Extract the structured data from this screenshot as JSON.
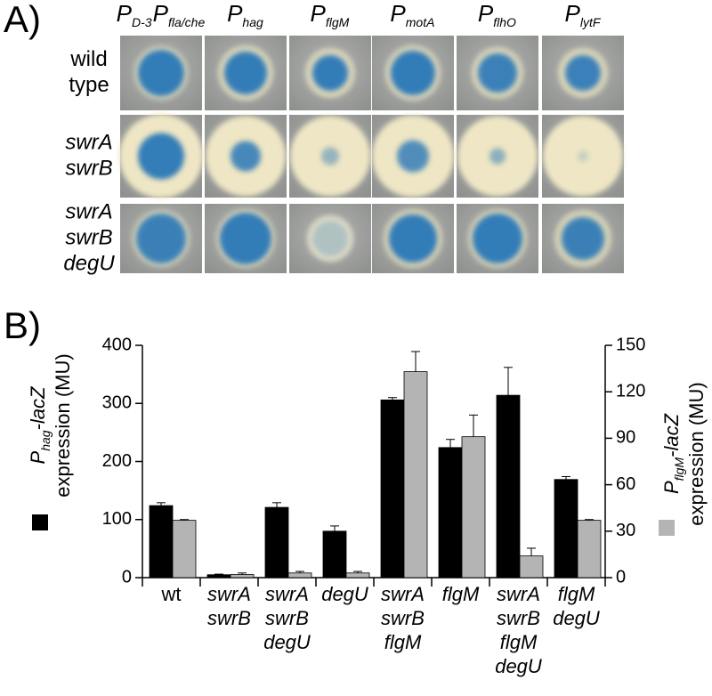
{
  "panel_a": {
    "label": "A)",
    "columns": [
      [
        [
          "P",
          "D-3"
        ],
        [
          "P",
          "fla/che"
        ]
      ],
      [
        [
          "P",
          "hag"
        ]
      ],
      [
        [
          "P",
          "flgM"
        ]
      ],
      [
        [
          "P",
          "motA"
        ]
      ],
      [
        [
          "P",
          "flhO"
        ]
      ],
      [
        [
          "P",
          "lytF"
        ]
      ]
    ],
    "rows": [
      [
        "wild",
        "type"
      ],
      [
        "swrA",
        "swrB"
      ],
      [
        "swrA",
        "swrB",
        "degU"
      ]
    ]
  },
  "chart_data": {
    "type": "bar",
    "label": "B)",
    "categories": [
      [
        "wt"
      ],
      [
        "swrA",
        "swrB"
      ],
      [
        "swrA",
        "swrB",
        "degU"
      ],
      [
        "degU"
      ],
      [
        "swrA",
        "swrB",
        "flgM"
      ],
      [
        "flgM"
      ],
      [
        "swrA",
        "swrB",
        "flgM",
        "degU"
      ],
      [
        "flgM",
        "degU"
      ]
    ],
    "ylabel": {
      "base": "P",
      "sub": "hag",
      "rest": "-lacZ",
      "line2": "expression (MU)"
    },
    "y2label": {
      "base": "P",
      "sub": "flgM",
      "rest": "-lacZ",
      "line2": "expression (MU)"
    },
    "ylim": [
      0,
      400
    ],
    "yticks": [
      0,
      100,
      200,
      300,
      400
    ],
    "y2lim": [
      0,
      150
    ],
    "y2ticks": [
      0,
      30,
      60,
      90,
      120,
      150
    ],
    "series": [
      {
        "color": "#000000",
        "values": [
          124,
          5,
          121,
          80,
          306,
          224,
          314,
          169
        ],
        "errors": [
          5,
          1,
          8,
          9,
          4,
          14,
          48,
          5
        ]
      },
      {
        "color": "#b4b4b4",
        "axis": "y2",
        "values": [
          37,
          2,
          3,
          3,
          133,
          91,
          14,
          37
        ],
        "errors": [
          0.5,
          1,
          1,
          1,
          13,
          14,
          5,
          0.5
        ]
      }
    ]
  }
}
